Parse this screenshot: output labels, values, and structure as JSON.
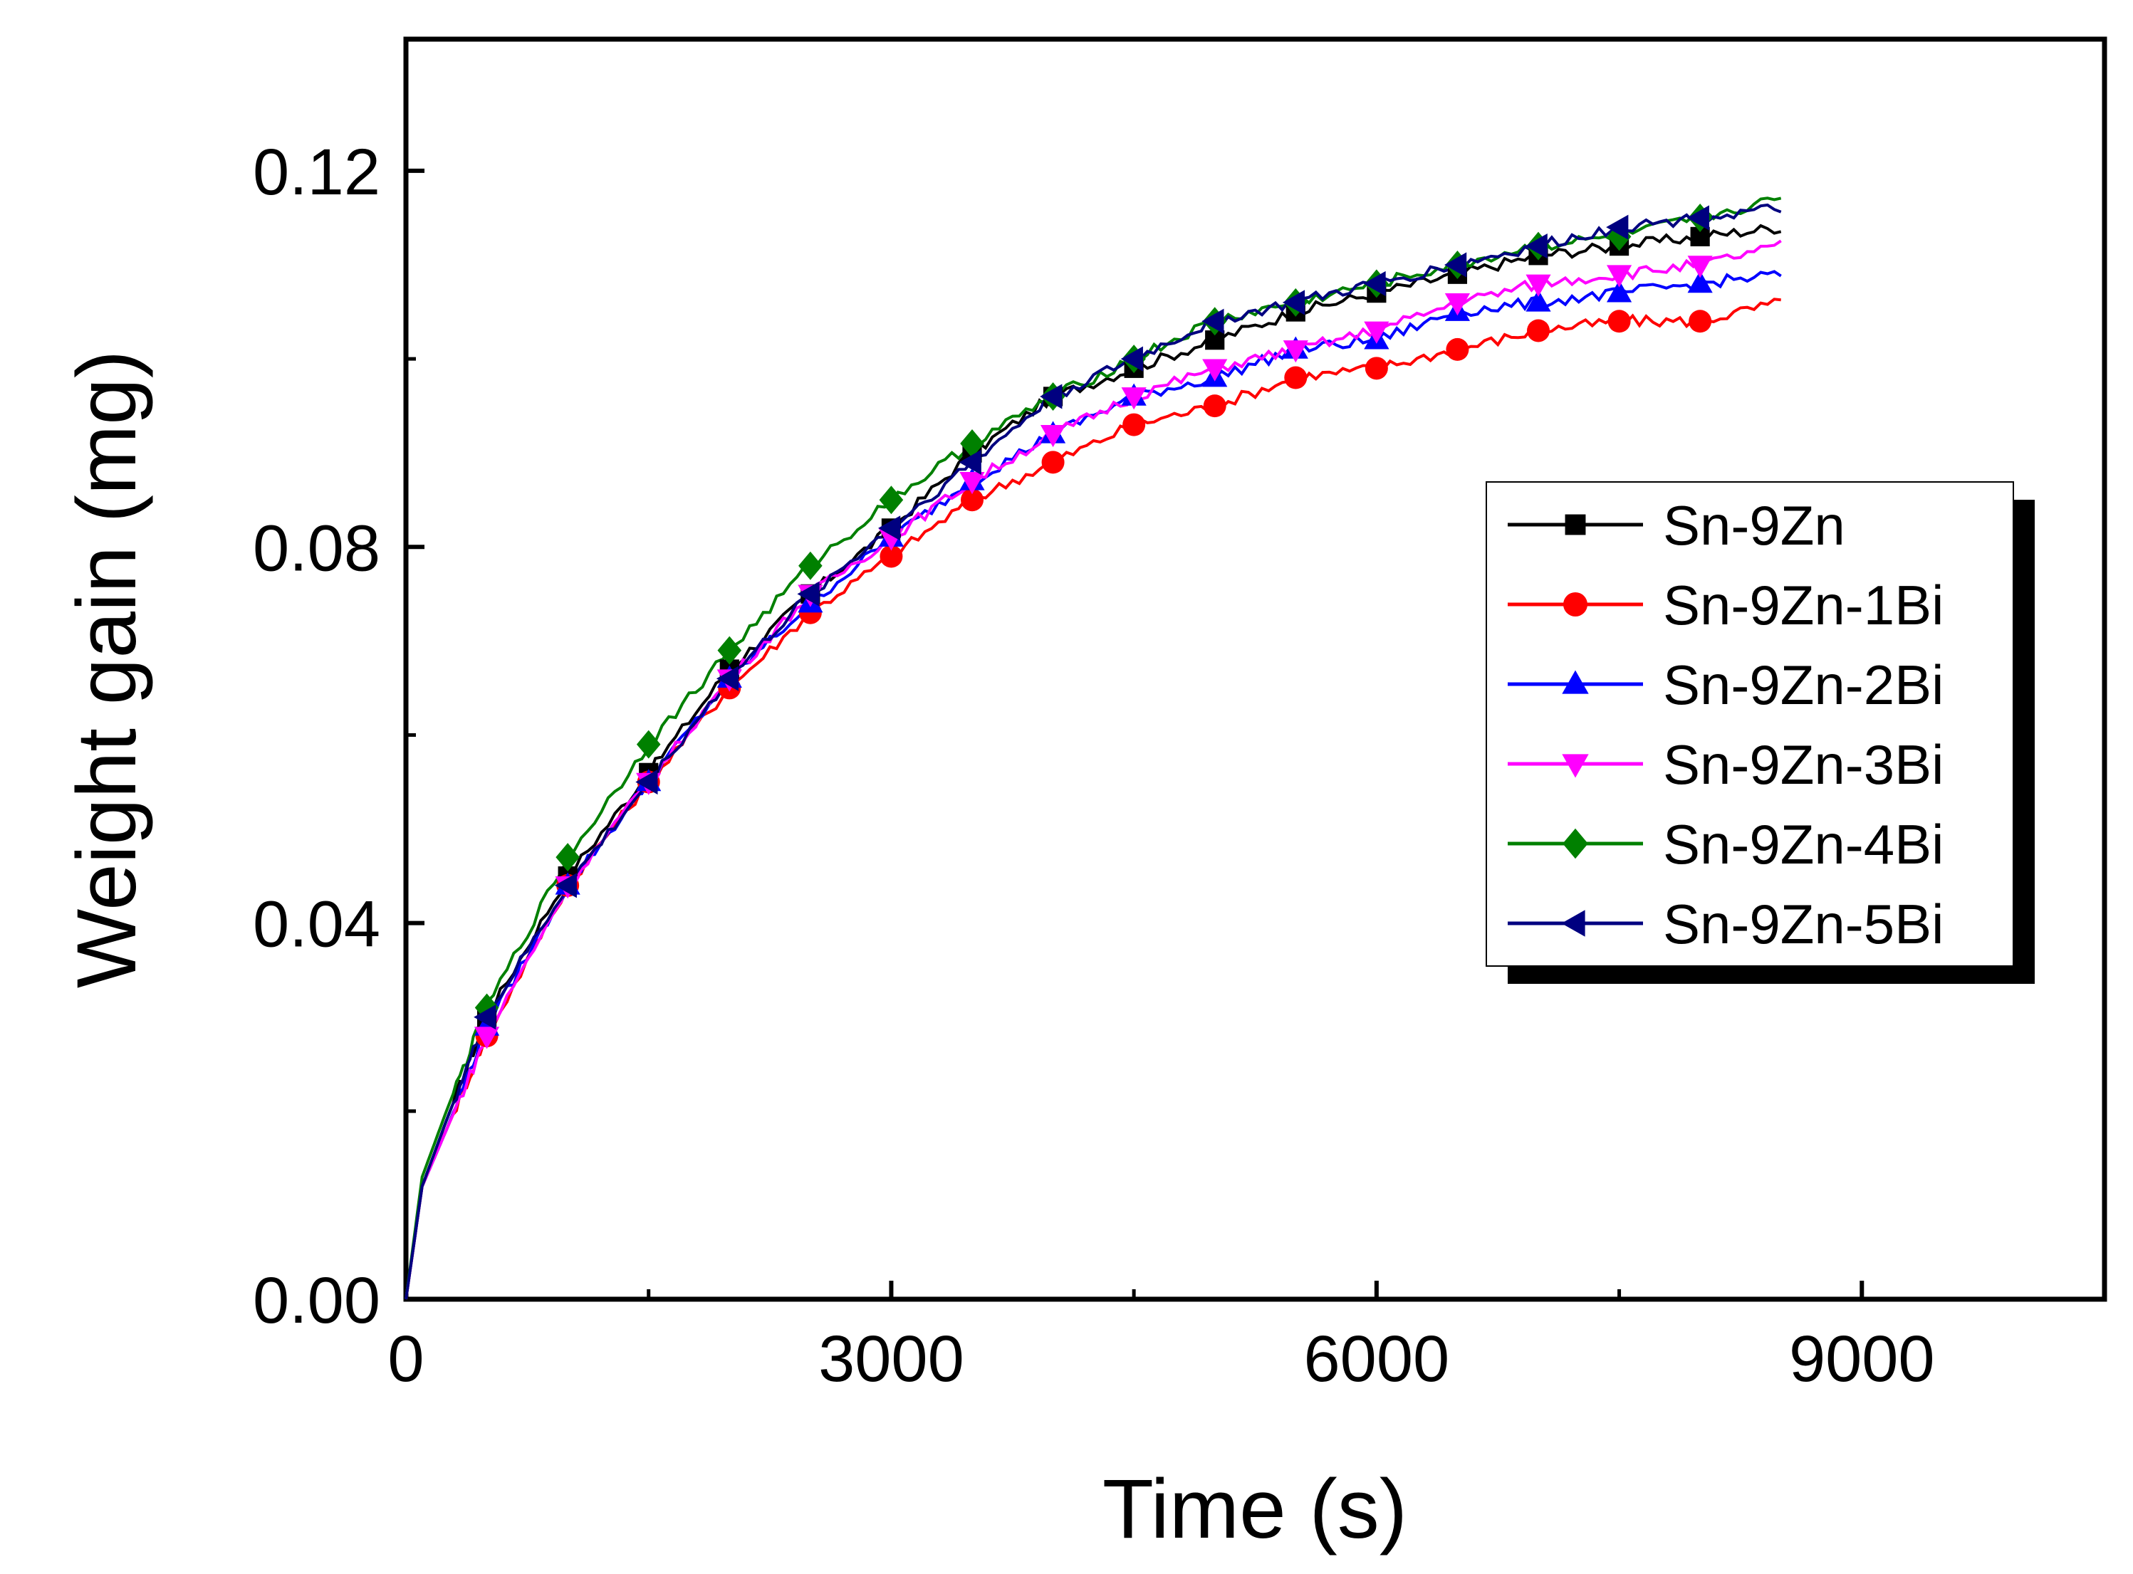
{
  "chart_data": {
    "type": "line",
    "title": "",
    "xlabel": "Time (s)",
    "ylabel": "Weight gain (mg)",
    "xlim": [
      0,
      10500
    ],
    "ylim": [
      0,
      0.134
    ],
    "x_ticks": [
      0,
      3000,
      6000,
      9000
    ],
    "x_tick_labels": [
      "0",
      "3000",
      "6000",
      "9000"
    ],
    "y_ticks": [
      0,
      0.04,
      0.08,
      0.12
    ],
    "y_tick_labels": [
      "0.00",
      "0.04",
      "0.08",
      "0.12"
    ],
    "grid": false,
    "legend_position": "right",
    "series_x": [
      0,
      100,
      250,
      500,
      1000,
      1500,
      2000,
      2500,
      3000,
      3500,
      4000,
      4500,
      5000,
      5500,
      6000,
      6500,
      7000,
      7500,
      8000,
      8500
    ],
    "series": [
      {
        "name": "Sn-9Zn",
        "color": "#000000",
        "marker": "square",
        "values": [
          0,
          0.012,
          0.019,
          0.03,
          0.045,
          0.056,
          0.067,
          0.075,
          0.082,
          0.09,
          0.096,
          0.099,
          0.102,
          0.105,
          0.107,
          0.109,
          0.111,
          0.112,
          0.113,
          0.114
        ]
      },
      {
        "name": "Sn-9Zn-1Bi",
        "color": "#ff0000",
        "marker": "circle",
        "values": [
          0,
          0.012,
          0.018,
          0.028,
          0.044,
          0.055,
          0.065,
          0.073,
          0.079,
          0.085,
          0.089,
          0.093,
          0.095,
          0.098,
          0.099,
          0.101,
          0.103,
          0.104,
          0.104,
          0.106
        ]
      },
      {
        "name": "Sn-9Zn-2Bi",
        "color": "#0000ff",
        "marker": "triangle-up",
        "values": [
          0,
          0.012,
          0.018,
          0.029,
          0.044,
          0.055,
          0.066,
          0.074,
          0.081,
          0.087,
          0.092,
          0.096,
          0.098,
          0.101,
          0.102,
          0.105,
          0.106,
          0.107,
          0.108,
          0.109
        ]
      },
      {
        "name": "Sn-9Zn-3Bi",
        "color": "#ff00ff",
        "marker": "triangle-down",
        "values": [
          0,
          0.012,
          0.018,
          0.028,
          0.044,
          0.055,
          0.066,
          0.075,
          0.081,
          0.087,
          0.092,
          0.096,
          0.099,
          0.101,
          0.103,
          0.106,
          0.108,
          0.109,
          0.11,
          0.112
        ]
      },
      {
        "name": "Sn-9Zn-4Bi",
        "color": "#008000",
        "marker": "diamond",
        "values": [
          0,
          0.013,
          0.02,
          0.031,
          0.047,
          0.059,
          0.069,
          0.078,
          0.085,
          0.091,
          0.096,
          0.1,
          0.104,
          0.106,
          0.108,
          0.11,
          0.112,
          0.113,
          0.115,
          0.117
        ]
      },
      {
        "name": "Sn-9Zn-5Bi",
        "color": "#000080",
        "marker": "triangle-left",
        "values": [
          0,
          0.012,
          0.019,
          0.03,
          0.044,
          0.055,
          0.066,
          0.075,
          0.082,
          0.089,
          0.096,
          0.1,
          0.104,
          0.106,
          0.108,
          0.11,
          0.112,
          0.114,
          0.115,
          0.116
        ]
      }
    ]
  }
}
